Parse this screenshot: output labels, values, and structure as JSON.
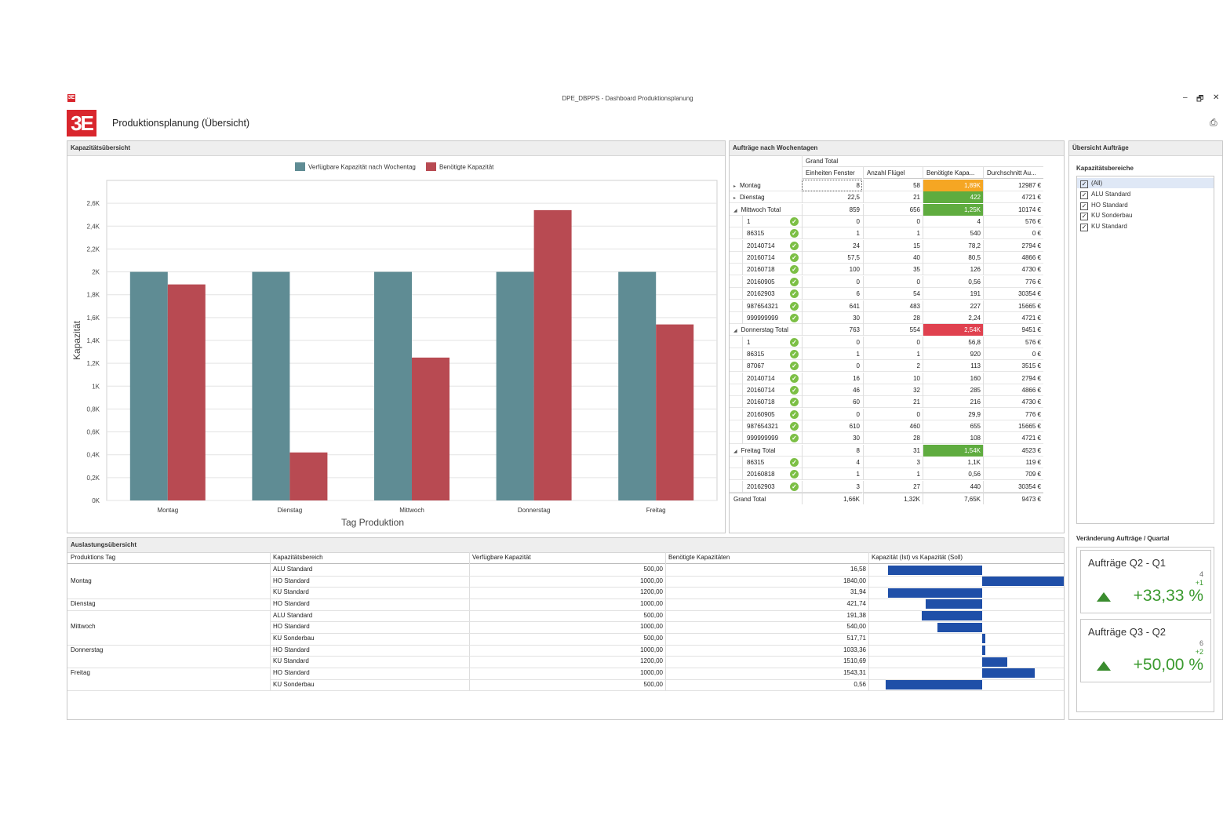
{
  "window": {
    "title": "DPE_DBPPS - Dashboard Produktionsplanung",
    "app_title": "Produktionsplanung (Übersicht)",
    "logo_text": "3E",
    "minimize_label": "–",
    "restore_label": "🗗",
    "close_label": "✕",
    "export_label": "⎙"
  },
  "capacity_panel": {
    "title": "Kapazitätsübersicht"
  },
  "chart_data": {
    "type": "bar",
    "categories": [
      "Montag",
      "Dienstag",
      "Mittwoch",
      "Donnerstag",
      "Freitag"
    ],
    "series": [
      {
        "name": "Verfügbare Kapazität nach Wochentag",
        "color": "#5f8c94",
        "values": [
          2000,
          2000,
          2000,
          2000,
          2000
        ]
      },
      {
        "name": "Benötigte Kapazität",
        "color": "#b84a52",
        "values": [
          1890,
          420,
          1250,
          2540,
          1540
        ]
      }
    ],
    "xlabel": "Tag Produktion",
    "ylabel": "Kapazität",
    "ylim": [
      0,
      2800
    ],
    "yticks": [
      0,
      200,
      400,
      600,
      800,
      1000,
      1200,
      1400,
      1600,
      1800,
      2000,
      2200,
      2400,
      2600
    ],
    "ytick_labels": [
      "0K",
      "0,2K",
      "0,4K",
      "0,6K",
      "0,8K",
      "1K",
      "1,2K",
      "1,4K",
      "1,6K",
      "1,8K",
      "2K",
      "2,2K",
      "2,4K",
      "2,6K"
    ],
    "legend_position": "top-center",
    "grid": true
  },
  "orders_panel": {
    "title": "Aufträge nach Wochentagen",
    "grand_total_header": "Grand Total",
    "columns": [
      "Einheiten Fenster",
      "Anzahl Flügel",
      "Benötigte Kapa...",
      "Durchschnitt Au..."
    ],
    "rows": [
      {
        "label": "Montag",
        "level": 0,
        "marker": "▸",
        "check": false,
        "v": [
          "8",
          "58",
          "1,89K",
          "12987 €"
        ],
        "hl": "#f5a623"
      },
      {
        "label": "Dienstag",
        "level": 0,
        "marker": "▸",
        "check": false,
        "v": [
          "22,5",
          "21",
          "422",
          "4721 €"
        ],
        "hl": "#5fac3f"
      },
      {
        "label": "Mittwoch Total",
        "level": 0,
        "marker": "◢",
        "check": false,
        "v": [
          "859",
          "656",
          "1,25K",
          "10174 €"
        ],
        "hl": "#5fac3f"
      },
      {
        "label": "1",
        "level": 1,
        "marker": "",
        "check": true,
        "v": [
          "0",
          "0",
          "4",
          "576 €"
        ],
        "hl": ""
      },
      {
        "label": "86315",
        "level": 1,
        "marker": "",
        "check": true,
        "v": [
          "1",
          "1",
          "540",
          "0 €"
        ],
        "hl": ""
      },
      {
        "label": "20140714",
        "level": 1,
        "marker": "",
        "check": true,
        "v": [
          "24",
          "15",
          "78,2",
          "2794 €"
        ],
        "hl": ""
      },
      {
        "label": "20160714",
        "level": 1,
        "marker": "",
        "check": true,
        "v": [
          "57,5",
          "40",
          "80,5",
          "4866 €"
        ],
        "hl": ""
      },
      {
        "label": "20160718",
        "level": 1,
        "marker": "",
        "check": true,
        "v": [
          "100",
          "35",
          "126",
          "4730 €"
        ],
        "hl": ""
      },
      {
        "label": "20160905",
        "level": 1,
        "marker": "",
        "check": true,
        "v": [
          "0",
          "0",
          "0,56",
          "776 €"
        ],
        "hl": ""
      },
      {
        "label": "20162903",
        "level": 1,
        "marker": "",
        "check": true,
        "v": [
          "6",
          "54",
          "191",
          "30354 €"
        ],
        "hl": ""
      },
      {
        "label": "987654321",
        "level": 1,
        "marker": "",
        "check": true,
        "v": [
          "641",
          "483",
          "227",
          "15665 €"
        ],
        "hl": ""
      },
      {
        "label": "999999999",
        "level": 1,
        "marker": "",
        "check": true,
        "v": [
          "30",
          "28",
          "2,24",
          "4721 €"
        ],
        "hl": ""
      },
      {
        "label": "Donnerstag Total",
        "level": 0,
        "marker": "◢",
        "check": false,
        "v": [
          "763",
          "554",
          "2,54K",
          "9451 €"
        ],
        "hl": "#e0414f"
      },
      {
        "label": "1",
        "level": 1,
        "marker": "",
        "check": true,
        "v": [
          "0",
          "0",
          "56,8",
          "576 €"
        ],
        "hl": ""
      },
      {
        "label": "86315",
        "level": 1,
        "marker": "",
        "check": true,
        "v": [
          "1",
          "1",
          "920",
          "0 €"
        ],
        "hl": ""
      },
      {
        "label": "87067",
        "level": 1,
        "marker": "",
        "check": true,
        "v": [
          "0",
          "2",
          "113",
          "3515 €"
        ],
        "hl": ""
      },
      {
        "label": "20140714",
        "level": 1,
        "marker": "",
        "check": true,
        "v": [
          "16",
          "10",
          "160",
          "2794 €"
        ],
        "hl": ""
      },
      {
        "label": "20160714",
        "level": 1,
        "marker": "",
        "check": true,
        "v": [
          "46",
          "32",
          "285",
          "4866 €"
        ],
        "hl": ""
      },
      {
        "label": "20160718",
        "level": 1,
        "marker": "",
        "check": true,
        "v": [
          "60",
          "21",
          "216",
          "4730 €"
        ],
        "hl": ""
      },
      {
        "label": "20160905",
        "level": 1,
        "marker": "",
        "check": true,
        "v": [
          "0",
          "0",
          "29,9",
          "776 €"
        ],
        "hl": ""
      },
      {
        "label": "987654321",
        "level": 1,
        "marker": "",
        "check": true,
        "v": [
          "610",
          "460",
          "655",
          "15665 €"
        ],
        "hl": ""
      },
      {
        "label": "999999999",
        "level": 1,
        "marker": "",
        "check": true,
        "v": [
          "30",
          "28",
          "108",
          "4721 €"
        ],
        "hl": ""
      },
      {
        "label": "Freitag Total",
        "level": 0,
        "marker": "◢",
        "check": false,
        "v": [
          "8",
          "31",
          "1,54K",
          "4523 €"
        ],
        "hl": "#5fac3f"
      },
      {
        "label": "86315",
        "level": 1,
        "marker": "",
        "check": true,
        "v": [
          "4",
          "3",
          "1,1K",
          "119 €"
        ],
        "hl": ""
      },
      {
        "label": "20160818",
        "level": 1,
        "marker": "",
        "check": true,
        "v": [
          "1",
          "1",
          "0,56",
          "709 €"
        ],
        "hl": ""
      },
      {
        "label": "20162903",
        "level": 1,
        "marker": "",
        "check": true,
        "v": [
          "3",
          "27",
          "440",
          "30354 €"
        ],
        "hl": ""
      }
    ],
    "grand_total": {
      "label": "Grand Total",
      "v": [
        "1,66K",
        "1,32K",
        "7,65K",
        "9473 €"
      ]
    }
  },
  "overview_panel": {
    "title": "Übersicht Aufträge",
    "filter_title": "Kapazitätsbereiche",
    "filter_items": [
      "(All)",
      "ALU Standard",
      "HO Standard",
      "KU Sonderbau",
      "KU Standard"
    ],
    "change_title": "Veränderung Aufträge / Quartal",
    "cards": [
      {
        "title": "Aufträge Q2 -  Q1",
        "value": "4",
        "delta": "+1",
        "percent": "+33,33 %"
      },
      {
        "title": "Aufträge Q3 -  Q2",
        "value": "6",
        "delta": "+2",
        "percent": "+50,00 %"
      }
    ]
  },
  "utilization_panel": {
    "title": "Auslastungsübersicht",
    "columns": [
      "Produktions Tag",
      "Kapazitätsbereich",
      "Verfügbare Kapazität",
      "Benötigte Kapazitäten",
      "Kapazität (Ist) vs Kapazität (Soll)"
    ],
    "bar_color": "#1f4fa8",
    "rows": [
      {
        "day": "",
        "area": "ALU Standard",
        "avail": "500,00",
        "need": "16,58",
        "ratio": -0.97
      },
      {
        "day": "Montag",
        "area": "HO Standard",
        "avail": "1000,00",
        "need": "1840,00",
        "ratio": 0.84
      },
      {
        "day": "",
        "area": "KU Standard",
        "avail": "1200,00",
        "need": "31,94",
        "ratio": -0.97
      },
      {
        "day": "Dienstag",
        "area": "HO Standard",
        "avail": "1000,00",
        "need": "421,74",
        "ratio": -0.58
      },
      {
        "day": "",
        "area": "ALU Standard",
        "avail": "500,00",
        "need": "191,38",
        "ratio": -0.62
      },
      {
        "day": "Mittwoch",
        "area": "HO Standard",
        "avail": "1000,00",
        "need": "540,00",
        "ratio": -0.46
      },
      {
        "day": "",
        "area": "KU Sonderbau",
        "avail": "500,00",
        "need": "517,71",
        "ratio": 0.035
      },
      {
        "day": "Donnerstag",
        "area": "HO Standard",
        "avail": "1000,00",
        "need": "1033,36",
        "ratio": 0.033
      },
      {
        "day": "",
        "area": "KU Standard",
        "avail": "1200,00",
        "need": "1510,69",
        "ratio": 0.26
      },
      {
        "day": "Freitag",
        "area": "HO Standard",
        "avail": "1000,00",
        "need": "1543,31",
        "ratio": 0.54
      },
      {
        "day": "",
        "area": "KU Sonderbau",
        "avail": "500,00",
        "need": "0,56",
        "ratio": -0.99
      }
    ]
  }
}
